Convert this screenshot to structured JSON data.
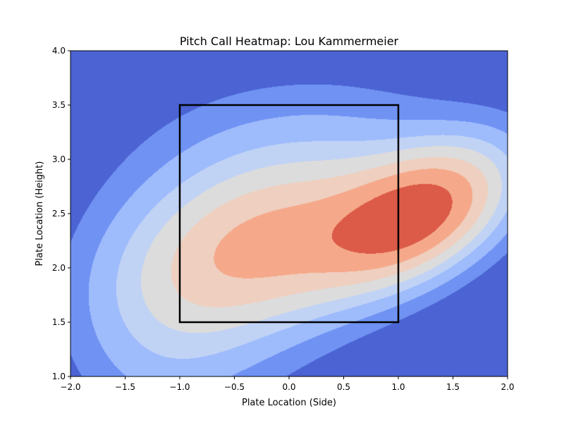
{
  "chart_data": {
    "type": "heatmap",
    "title": "Pitch Call Heatmap: Lou Kammermeier",
    "xlabel": "Plate Location (Side)",
    "ylabel": "Plate Location (Height)",
    "xlim": [
      -2.0,
      2.0
    ],
    "ylim": [
      1.0,
      4.0
    ],
    "x_ticks": [
      "−2.0",
      "−1.5",
      "−1.0",
      "−0.5",
      "0.0",
      "0.5",
      "1.0",
      "1.5",
      "2.0"
    ],
    "y_ticks": [
      "1.0",
      "1.5",
      "2.0",
      "2.5",
      "3.0",
      "3.5",
      "4.0"
    ],
    "x_tick_values": [
      -2.0,
      -1.5,
      -1.0,
      -0.5,
      0.0,
      0.5,
      1.0,
      1.5,
      2.0
    ],
    "y_tick_values": [
      1.0,
      1.5,
      2.0,
      2.5,
      3.0,
      3.5,
      4.0
    ],
    "colormap": "coolwarm",
    "contour_colors": [
      "#4b63d3",
      "#6f92f3",
      "#9ebbfc",
      "#c1d3f5",
      "#dddcdc",
      "#efcfbf",
      "#f5a98a",
      "#dc5a48"
    ],
    "hotspot": {
      "x": 1.2,
      "y": 2.55
    },
    "strike_zone": {
      "x": [
        -1.0,
        1.0
      ],
      "y": [
        1.5,
        3.5
      ],
      "color": "#000000"
    }
  }
}
